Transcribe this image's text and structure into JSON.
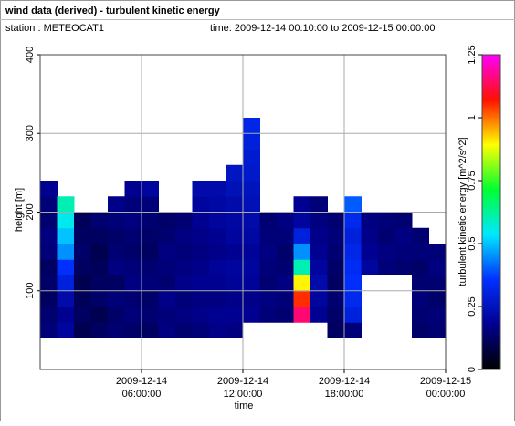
{
  "header": {
    "title": "wind data (derived) - turbulent kinetic energy",
    "station": "station : METEOCAT1",
    "time": "time: 2009-12-14 00:10:00 to 2009-12-15 00:00:00"
  },
  "chart_data": {
    "type": "heatmap",
    "xlabel": "time",
    "ylabel": "height [m]",
    "zlabel": "turbulent kinetic energy [m^2/s^2]",
    "xlim": [
      "2009-12-14 00:00:00",
      "2009-12-15 00:00:00"
    ],
    "xticks": [
      "2009-12-14 06:00:00",
      "2009-12-14 12:00:00",
      "2009-12-14 18:00:00",
      "2009-12-15 00:00:00"
    ],
    "ylim": [
      0,
      400
    ],
    "yticks": [
      100,
      200,
      300,
      400
    ],
    "zlim": [
      0,
      1.25
    ],
    "zticks": [
      0,
      0.25,
      0.5,
      0.75,
      1,
      1.25
    ],
    "colorscale": [
      "#000000",
      "#000090",
      "#0030ff",
      "#00e8ff",
      "#00ff30",
      "#ffff00",
      "#ff1000",
      "#ff00ff"
    ],
    "grid": true,
    "x": [
      "2009-12-14 00:00:00",
      "2009-12-14 01:00:00",
      "2009-12-14 02:00:00",
      "2009-12-14 03:00:00",
      "2009-12-14 04:00:00",
      "2009-12-14 05:00:00",
      "2009-12-14 06:00:00",
      "2009-12-14 07:00:00",
      "2009-12-14 08:00:00",
      "2009-12-14 09:00:00",
      "2009-12-14 10:00:00",
      "2009-12-14 11:00:00",
      "2009-12-14 12:00:00",
      "2009-12-14 13:00:00",
      "2009-12-14 14:00:00",
      "2009-12-14 15:00:00",
      "2009-12-14 16:00:00",
      "2009-12-14 17:00:00",
      "2009-12-14 18:00:00",
      "2009-12-14 19:00:00",
      "2009-12-14 20:00:00",
      "2009-12-14 21:00:00",
      "2009-12-14 22:00:00",
      "2009-12-14 23:00:00"
    ],
    "y": [
      40,
      60,
      80,
      100,
      120,
      140,
      160,
      180,
      200,
      220,
      240,
      260,
      280,
      300,
      320
    ],
    "z": [
      [
        0.15,
        0.14,
        0.12,
        0.13,
        0.12,
        0.15,
        0.16,
        0.14,
        0.15,
        0.18,
        null,
        null,
        null,
        null,
        null
      ],
      [
        0.2,
        0.18,
        0.22,
        0.3,
        0.35,
        0.45,
        0.5,
        0.55,
        0.6,
        null,
        null,
        null,
        null,
        null,
        null
      ],
      [
        0.1,
        0.12,
        0.11,
        0.1,
        0.12,
        0.13,
        0.12,
        0.11,
        null,
        null,
        null,
        null,
        null,
        null,
        null
      ],
      [
        0.12,
        0.1,
        0.13,
        0.12,
        0.11,
        0.1,
        0.12,
        0.14,
        null,
        null,
        null,
        null,
        null,
        null,
        null
      ],
      [
        0.14,
        0.13,
        0.15,
        0.12,
        0.16,
        0.14,
        0.13,
        0.15,
        0.17,
        null,
        null,
        null,
        null,
        null,
        null
      ],
      [
        0.13,
        0.15,
        0.14,
        0.16,
        0.15,
        0.13,
        0.14,
        0.16,
        0.15,
        0.18,
        null,
        null,
        null,
        null,
        null
      ],
      [
        0.12,
        0.14,
        0.13,
        0.15,
        0.14,
        0.12,
        0.13,
        0.14,
        0.15,
        0.2,
        null,
        null,
        null,
        null,
        null
      ],
      [
        0.16,
        0.15,
        0.17,
        0.14,
        0.15,
        0.16,
        0.14,
        0.13,
        null,
        null,
        null,
        null,
        null,
        null,
        null
      ],
      [
        0.14,
        0.16,
        0.15,
        0.17,
        0.16,
        0.15,
        0.16,
        0.14,
        null,
        null,
        null,
        null,
        null,
        null,
        null
      ],
      [
        0.15,
        0.17,
        0.16,
        0.18,
        0.17,
        0.16,
        0.17,
        0.18,
        0.2,
        0.22,
        null,
        null,
        null,
        null,
        null
      ],
      [
        0.17,
        0.18,
        0.16,
        0.18,
        0.19,
        0.17,
        0.18,
        0.2,
        0.21,
        0.22,
        null,
        null,
        null,
        null,
        null
      ],
      [
        0.16,
        0.18,
        0.17,
        0.19,
        0.2,
        0.18,
        0.2,
        0.21,
        0.22,
        0.24,
        0.26,
        null,
        null,
        null,
        null
      ],
      [
        null,
        0.18,
        0.17,
        0.19,
        0.2,
        0.19,
        0.21,
        0.22,
        0.24,
        0.25,
        0.27,
        0.28,
        0.3,
        0.32,
        null
      ],
      [
        null,
        0.15,
        0.16,
        0.14,
        0.15,
        0.16,
        0.15,
        0.14,
        null,
        null,
        null,
        null,
        null,
        null,
        null
      ],
      [
        null,
        0.14,
        0.15,
        0.16,
        0.14,
        0.13,
        0.15,
        0.16,
        null,
        null,
        null,
        null,
        null,
        null,
        null
      ],
      [
        null,
        1.15,
        1.05,
        0.9,
        0.6,
        0.45,
        0.3,
        0.2,
        0.18,
        null,
        null,
        null,
        null,
        null,
        null
      ],
      [
        null,
        0.18,
        0.2,
        0.22,
        0.2,
        0.18,
        0.17,
        0.16,
        0.15,
        null,
        null,
        null,
        null,
        null,
        null
      ],
      [
        0.12,
        0.13,
        0.14,
        0.12,
        0.13,
        0.14,
        0.15,
        0.14,
        null,
        null,
        null,
        null,
        null,
        null,
        null
      ],
      [
        0.15,
        0.3,
        0.33,
        0.35,
        0.34,
        0.32,
        0.3,
        0.33,
        0.4,
        null,
        null,
        null,
        null,
        null,
        null
      ],
      [
        null,
        null,
        null,
        null,
        0.2,
        0.18,
        0.17,
        0.16,
        null,
        null,
        null,
        null,
        null,
        null,
        null
      ],
      [
        null,
        null,
        null,
        null,
        0.15,
        0.16,
        0.14,
        0.15,
        null,
        null,
        null,
        null,
        null,
        null,
        null
      ],
      [
        null,
        null,
        null,
        null,
        0.14,
        0.15,
        0.16,
        0.14,
        null,
        null,
        null,
        null,
        null,
        null,
        null
      ],
      [
        0.13,
        0.14,
        0.15,
        0.14,
        0.13,
        0.15,
        0.14,
        null,
        null,
        null,
        null,
        null,
        null,
        null,
        null
      ],
      [
        0.14,
        0.15,
        0.13,
        0.14,
        0.16,
        0.15,
        null,
        null,
        null,
        null,
        null,
        null,
        null,
        null,
        null
      ]
    ]
  }
}
